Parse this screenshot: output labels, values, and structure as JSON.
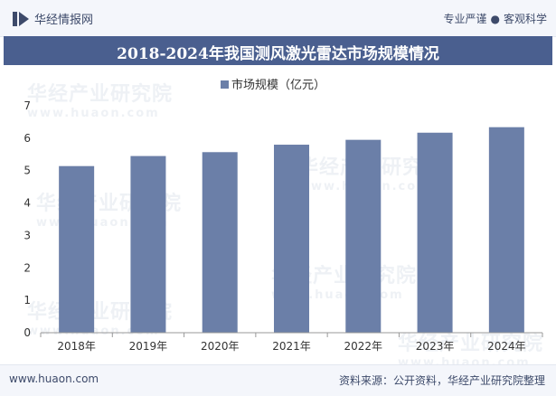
{
  "header": {
    "brand": "华经情报网",
    "slogan_left": "专业严谨",
    "slogan_sep": "●",
    "slogan_right": "客观科学",
    "title": "2018-2024年我国测风激光雷达市场规模情况"
  },
  "watermark": {
    "cn": "华经产业研究院",
    "en": "www.huaon.com"
  },
  "footer": {
    "url": "www.huaon.com",
    "source": "资料来源：公开资料，华经产业研究院整理"
  },
  "colors": {
    "bar": "#6b7fa8",
    "title_bg": "#4a5f8f",
    "axis": "#999999"
  },
  "chart_data": {
    "type": "bar",
    "categories": [
      "2018年",
      "2019年",
      "2020年",
      "2021年",
      "2022年",
      "2023年",
      "2024年"
    ],
    "series": [
      {
        "name": "市场规模（亿元）",
        "values": [
          5.14,
          5.45,
          5.57,
          5.8,
          5.95,
          6.17,
          6.34
        ]
      }
    ],
    "ylim": [
      0,
      7
    ],
    "yticks": [
      0,
      1,
      2,
      3,
      4,
      5,
      6,
      7
    ],
    "grid": false,
    "legend": "top-center"
  }
}
